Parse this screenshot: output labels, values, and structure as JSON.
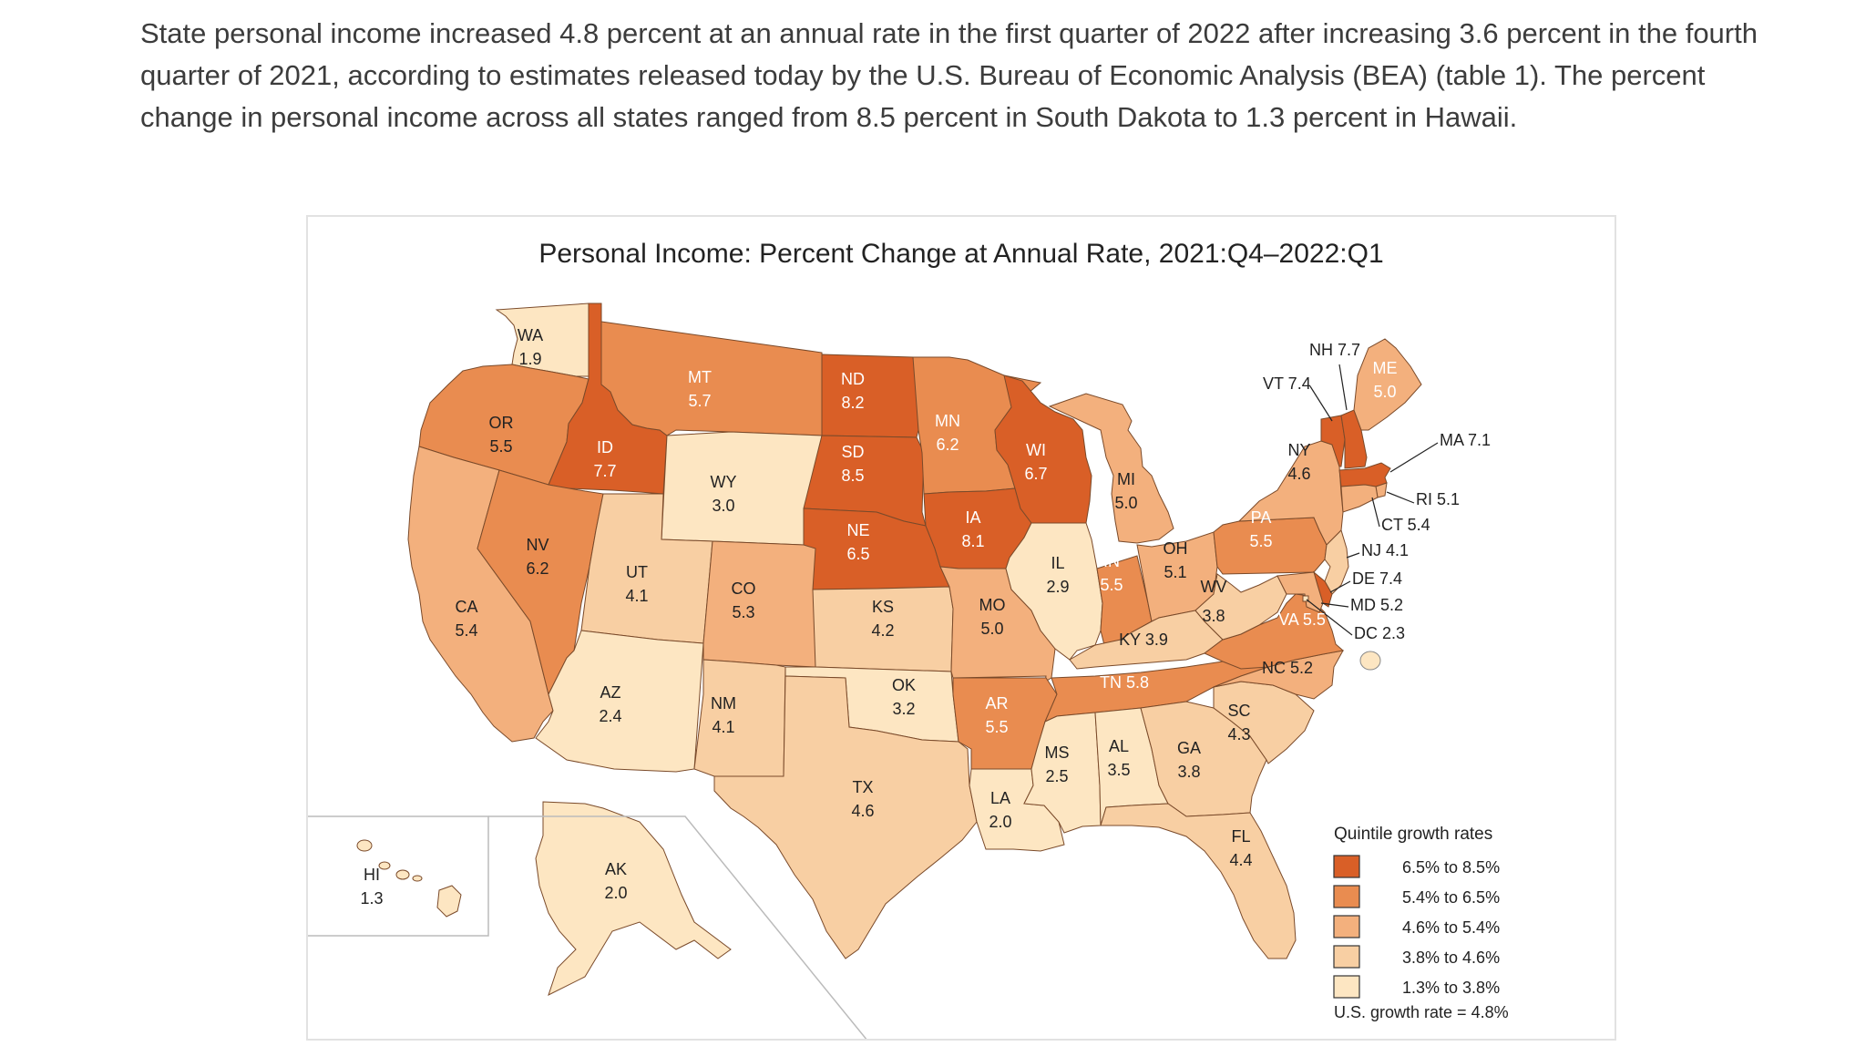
{
  "intro_text": "State personal income increased 4.8 percent at an annual rate in the first quarter of 2022 after increasing 3.6 percent in the fourth quarter of 2021, according to estimates released today by the U.S. Bureau of Economic Analysis (BEA) (table 1). The percent change in personal income across all states ranged from 8.5 percent in South Dakota to 1.3 percent in Hawaii.",
  "map_title": "Personal Income: Percent Change at Annual Rate, 2021:Q4–2022:Q1",
  "colors": {
    "q1": "#d95f27",
    "q2": "#e98c50",
    "q3": "#f3b07d",
    "q4": "#f8cfa3",
    "q5": "#fde6c2",
    "border": "#7a4a2a"
  },
  "states": [
    {
      "abbr": "WA",
      "value": "1.9",
      "quintile": "q5"
    },
    {
      "abbr": "OR",
      "value": "5.5",
      "quintile": "q2"
    },
    {
      "abbr": "CA",
      "value": "5.4",
      "quintile": "q3"
    },
    {
      "abbr": "ID",
      "value": "7.7",
      "quintile": "q1"
    },
    {
      "abbr": "NV",
      "value": "6.2",
      "quintile": "q2"
    },
    {
      "abbr": "MT",
      "value": "5.7",
      "quintile": "q2"
    },
    {
      "abbr": "WY",
      "value": "3.0",
      "quintile": "q5"
    },
    {
      "abbr": "UT",
      "value": "4.1",
      "quintile": "q4"
    },
    {
      "abbr": "AZ",
      "value": "2.4",
      "quintile": "q5"
    },
    {
      "abbr": "CO",
      "value": "5.3",
      "quintile": "q3"
    },
    {
      "abbr": "NM",
      "value": "4.1",
      "quintile": "q4"
    },
    {
      "abbr": "ND",
      "value": "8.2",
      "quintile": "q1"
    },
    {
      "abbr": "SD",
      "value": "8.5",
      "quintile": "q1"
    },
    {
      "abbr": "NE",
      "value": "6.5",
      "quintile": "q1"
    },
    {
      "abbr": "KS",
      "value": "4.2",
      "quintile": "q4"
    },
    {
      "abbr": "OK",
      "value": "3.2",
      "quintile": "q5"
    },
    {
      "abbr": "TX",
      "value": "4.6",
      "quintile": "q4"
    },
    {
      "abbr": "MN",
      "value": "6.2",
      "quintile": "q2"
    },
    {
      "abbr": "IA",
      "value": "8.1",
      "quintile": "q1"
    },
    {
      "abbr": "MO",
      "value": "5.0",
      "quintile": "q3"
    },
    {
      "abbr": "AR",
      "value": "5.5",
      "quintile": "q2"
    },
    {
      "abbr": "LA",
      "value": "2.0",
      "quintile": "q5"
    },
    {
      "abbr": "WI",
      "value": "6.7",
      "quintile": "q1"
    },
    {
      "abbr": "IL",
      "value": "2.9",
      "quintile": "q5"
    },
    {
      "abbr": "MI",
      "value": "5.0",
      "quintile": "q3"
    },
    {
      "abbr": "IN",
      "value": "5.5",
      "quintile": "q2"
    },
    {
      "abbr": "OH",
      "value": "5.1",
      "quintile": "q3"
    },
    {
      "abbr": "KY",
      "value": "3.9",
      "quintile": "q4"
    },
    {
      "abbr": "TN",
      "value": "5.8",
      "quintile": "q2"
    },
    {
      "abbr": "MS",
      "value": "2.5",
      "quintile": "q5"
    },
    {
      "abbr": "AL",
      "value": "3.5",
      "quintile": "q5"
    },
    {
      "abbr": "GA",
      "value": "3.8",
      "quintile": "q4"
    },
    {
      "abbr": "FL",
      "value": "4.4",
      "quintile": "q4"
    },
    {
      "abbr": "SC",
      "value": "4.3",
      "quintile": "q4"
    },
    {
      "abbr": "NC",
      "value": "5.2",
      "quintile": "q3"
    },
    {
      "abbr": "VA",
      "value": "5.5",
      "quintile": "q2"
    },
    {
      "abbr": "WV",
      "value": "3.8",
      "quintile": "q4"
    },
    {
      "abbr": "PA",
      "value": "5.5",
      "quintile": "q2"
    },
    {
      "abbr": "NY",
      "value": "4.6",
      "quintile": "q3"
    },
    {
      "abbr": "VT",
      "value": "7.4",
      "quintile": "q1"
    },
    {
      "abbr": "NH",
      "value": "7.7",
      "quintile": "q1"
    },
    {
      "abbr": "ME",
      "value": "5.0",
      "quintile": "q3"
    },
    {
      "abbr": "MA",
      "value": "7.1",
      "quintile": "q1"
    },
    {
      "abbr": "RI",
      "value": "5.1",
      "quintile": "q3"
    },
    {
      "abbr": "CT",
      "value": "5.4",
      "quintile": "q3"
    },
    {
      "abbr": "NJ",
      "value": "4.1",
      "quintile": "q4"
    },
    {
      "abbr": "DE",
      "value": "7.4",
      "quintile": "q1"
    },
    {
      "abbr": "MD",
      "value": "5.2",
      "quintile": "q3"
    },
    {
      "abbr": "DC",
      "value": "2.3",
      "quintile": "q5"
    },
    {
      "abbr": "AK",
      "value": "2.0",
      "quintile": "q5"
    },
    {
      "abbr": "HI",
      "value": "1.3",
      "quintile": "q5"
    }
  ],
  "legend": {
    "title": "Quintile growth rates",
    "items": [
      {
        "label": "6.5% to 8.5%",
        "quintile": "q1"
      },
      {
        "label": "5.4% to 6.5%",
        "quintile": "q2"
      },
      {
        "label": "4.6% to 5.4%",
        "quintile": "q3"
      },
      {
        "label": "3.8% to 4.6%",
        "quintile": "q4"
      },
      {
        "label": "1.3% to 3.8%",
        "quintile": "q5"
      }
    ],
    "footnote": "U.S. growth rate = 4.8%"
  }
}
